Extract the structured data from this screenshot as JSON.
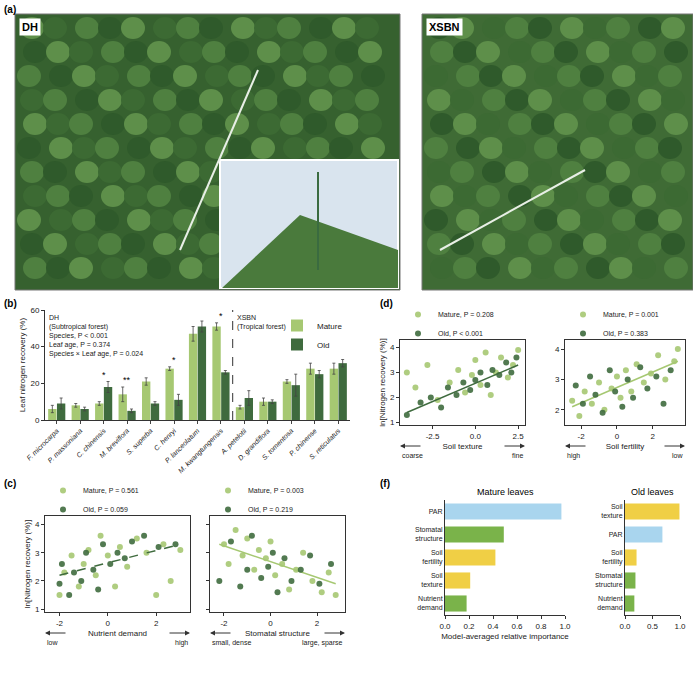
{
  "chart_data": [
    {
      "type": "photo",
      "panel": "(a)",
      "labels": [
        "DH",
        "XSBN"
      ]
    },
    {
      "type": "bar",
      "panel": "(b)",
      "y_label": "Leaf nitrogen recovery (%)",
      "categories": [
        "F. microcarpa",
        "P. massoniana",
        "C. chinensis",
        "M. breviflora",
        "S. superba",
        "C. henryi",
        "P. lanceolatum",
        "M. kwangtungensis",
        "A. petelotii",
        "D. grandiflora",
        "S. tomentosa",
        "P. chinense",
        "S. reticulatus"
      ],
      "series": [
        {
          "name": "Mature",
          "color": "#a6c872",
          "values": [
            6,
            8,
            9,
            14,
            21,
            28,
            47,
            51,
            7,
            10,
            21,
            28,
            28
          ],
          "errors": [
            2,
            1,
            1,
            4,
            2,
            1,
            4,
            2,
            1,
            2,
            1,
            3,
            3
          ]
        },
        {
          "name": "Old",
          "color": "#3f6b3e",
          "values": [
            9,
            6,
            18,
            5,
            9,
            11,
            51,
            26,
            12,
            10,
            19,
            25,
            31
          ],
          "errors": [
            3,
            1,
            3,
            1,
            1,
            3,
            3,
            1,
            4,
            1,
            6,
            2,
            2
          ]
        }
      ],
      "significance": [
        null,
        null,
        "*",
        "**",
        null,
        "*",
        null,
        "*",
        null,
        null,
        null,
        null,
        null
      ],
      "groups": [
        {
          "label": [
            "DH",
            "(Subtropical forest)"
          ],
          "stats": [
            "Species, P < 0.001",
            "Leaf age, P = 0.374",
            "Species × Leaf age, P = 0.024"
          ],
          "count": 8
        },
        {
          "label": [
            "XSBN",
            "(Tropical forest)"
          ],
          "count": 5
        }
      ],
      "ylim": [
        0,
        60
      ],
      "yticks": [
        0,
        20,
        40,
        60
      ],
      "grid": false,
      "legend": "top right"
    },
    {
      "type": "scatter",
      "panel": "(c)",
      "x_label": "Nutrient demand",
      "y_label": "ln[Nitrogen recovery (%)]",
      "x_arrows": [
        "low",
        "high"
      ],
      "xlim": [
        -2.6,
        3.4
      ],
      "xticks": [
        -2,
        0,
        2
      ],
      "ylim": [
        0.9,
        4.3
      ],
      "yticks": [
        1,
        2,
        3,
        4
      ],
      "grid": false,
      "legend": "top left",
      "series": [
        {
          "name": "Mature, P = 0.561",
          "color": "#a6c872",
          "marker": "circle",
          "x": [
            -2,
            -1.8,
            -1.5,
            -1.2,
            -1,
            -0.8,
            -0.5,
            -0.3,
            0,
            0.3,
            0.5,
            0.8,
            1.2,
            1.6,
            2,
            2.3,
            2.6,
            3
          ],
          "values": [
            1.5,
            2.3,
            2.9,
            1.8,
            2.6,
            3.1,
            2.2,
            3.6,
            2.9,
            1.8,
            3.2,
            2.5,
            3.5,
            3.0,
            1.5,
            3.3,
            2.0,
            3.1
          ]
        },
        {
          "name": "Old, P = 0.059",
          "color": "#3f6b3e",
          "marker": "circle",
          "x": [
            -2,
            -1.9,
            -1.6,
            -1.4,
            -1.1,
            -0.9,
            -0.6,
            -0.4,
            -0.2,
            0.1,
            0.4,
            0.7,
            1.0,
            1.5,
            2.1,
            2.8
          ],
          "values": [
            1.9,
            2.6,
            1.5,
            2.3,
            2.0,
            3.0,
            2.4,
            1.7,
            3.3,
            2.6,
            3.0,
            2.8,
            3.4,
            3.6,
            3.2,
            3.3
          ],
          "fit": {
            "x": [
              -2,
              3
            ],
            "values": [
              2.2,
              3.3
            ],
            "line_style": "dashed"
          }
        }
      ]
    },
    {
      "type": "scatter",
      "x_label": "Stomatal structure",
      "x_arrows": [
        "small, dense",
        "large, sparse"
      ],
      "tick_labels": "x",
      "xlim": [
        -2.6,
        3.2
      ],
      "xticks": [
        -2,
        0,
        2
      ],
      "ylim": [
        0.9,
        4.3
      ],
      "yticks": [
        1,
        2,
        3,
        4
      ],
      "grid": false,
      "legend": "top left",
      "series": [
        {
          "name": "Mature, P = 0.003",
          "color": "#a6c872",
          "marker": "circle",
          "x": [
            -2,
            -1.8,
            -1.5,
            -1.2,
            -1,
            -0.7,
            -0.5,
            -0.2,
            0,
            0.2,
            0.5,
            0.8,
            1.1,
            1.4,
            1.8,
            2.2,
            2.5,
            2.8
          ],
          "values": [
            3.3,
            2.6,
            3.8,
            2.9,
            3.5,
            2.4,
            3.1,
            2.8,
            3.4,
            2.2,
            2.6,
            1.7,
            2.4,
            3.0,
            2.0,
            1.6,
            2.3,
            1.5
          ],
          "fit": {
            "x": [
              -2.2,
              2.8
            ],
            "values": [
              3.3,
              1.9
            ],
            "line_style": "solid"
          }
        },
        {
          "name": "Old, P = 0.219",
          "color": "#3f6b3e",
          "marker": "circle",
          "x": [
            -2.2,
            -1.7,
            -1.3,
            -1,
            -0.8,
            -0.4,
            -0.1,
            0.1,
            0.3,
            0.6,
            0.9,
            1.3,
            1.7,
            2.1,
            2.6
          ],
          "values": [
            2.0,
            3.4,
            1.8,
            2.4,
            3.6,
            2.1,
            2.5,
            3.0,
            1.6,
            2.8,
            2.0,
            2.4,
            2.9,
            1.9,
            2.6
          ]
        }
      ]
    },
    {
      "type": "scatter",
      "panel": "(d)",
      "x_label": "Soil texture",
      "y_label": "ln[Nitrogen recovery (%)]",
      "x_arrows": [
        "coarse",
        "fine"
      ],
      "xlim": [
        -4.4,
        2.9
      ],
      "xticks": [
        -2.5,
        {
          "value": 0,
          "label": "0.0"
        },
        2.5
      ],
      "ylim": [
        0.9,
        4.3
      ],
      "yticks": [
        1,
        2,
        3,
        4
      ],
      "grid": false,
      "legend": "top left",
      "series": [
        {
          "name": "Mature, P = 0.208",
          "color": "#a6c872",
          "marker": "circle",
          "x": [
            -4,
            -3.5,
            -2.8,
            -2.2,
            -1.5,
            -1,
            -0.6,
            -0.2,
            0,
            0.3,
            0.6,
            0.9,
            1.2,
            1.5,
            1.9,
            2.2,
            2.5
          ],
          "values": [
            3.0,
            2.4,
            3.3,
            1.9,
            2.6,
            3.1,
            2.2,
            2.9,
            3.5,
            2.5,
            3.8,
            2.1,
            3.0,
            3.6,
            2.8,
            3.3,
            3.9
          ]
        },
        {
          "name": "Old, P < 0.001",
          "color": "#3f6b3e",
          "marker": "circle",
          "x": [
            -4,
            -3.2,
            -2.6,
            -2,
            -1.6,
            -1.1,
            -0.7,
            -0.3,
            0,
            0.3,
            0.7,
            1.0,
            1.4,
            1.8,
            2.1,
            2.4
          ],
          "values": [
            1.3,
            1.8,
            2.0,
            1.6,
            2.4,
            2.1,
            2.6,
            2.3,
            2.7,
            3.0,
            2.5,
            3.1,
            2.9,
            3.4,
            3.0,
            3.6
          ],
          "fit": {
            "x": [
              -4,
              2.5
            ],
            "values": [
              1.4,
              3.3
            ],
            "line_style": "solid"
          }
        }
      ]
    },
    {
      "type": "scatter",
      "x_label": "Soil fertility",
      "x_arrows": [
        "high",
        "low"
      ],
      "xlim": [
        -2.9,
        3.8
      ],
      "xticks": [
        -2,
        0,
        2
      ],
      "ylim": [
        1.5,
        4.3
      ],
      "yticks": [
        2,
        3,
        4
      ],
      "grid": false,
      "legend": "top left",
      "series": [
        {
          "name": "Mature, P = 0.001",
          "color": "#a6c872",
          "marker": "circle",
          "x": [
            -2.5,
            -2.1,
            -1.8,
            -1.4,
            -1,
            -0.7,
            -0.3,
            0,
            0.2,
            0.5,
            0.8,
            1.1,
            1.5,
            1.9,
            2.3,
            2.7,
            3.2,
            3.4
          ],
          "values": [
            2.3,
            1.8,
            2.6,
            2.2,
            2.9,
            2.0,
            2.7,
            3.1,
            2.4,
            3.3,
            2.6,
            3.5,
            2.9,
            3.2,
            3.8,
            3.0,
            3.6,
            4.0
          ],
          "fit": {
            "x": [
              -2.5,
              3.4
            ],
            "values": [
              2.1,
              3.6
            ],
            "line_style": "solid"
          }
        },
        {
          "name": "Old, P = 0.383",
          "color": "#3f6b3e",
          "marker": "circle",
          "x": [
            -2.3,
            -1.9,
            -1.5,
            -1.2,
            -0.8,
            -0.4,
            -0.1,
            0.3,
            0.6,
            0.9,
            1.3,
            1.7,
            2.2,
            2.6,
            3.0
          ],
          "values": [
            2.8,
            2.2,
            3.1,
            2.5,
            1.9,
            3.3,
            2.6,
            2.1,
            3.0,
            2.4,
            3.4,
            2.7,
            3.1,
            2.2,
            3.3
          ]
        }
      ]
    },
    {
      "type": "bar",
      "orientation": "horizontal",
      "panel": "(f)",
      "title": "Mature leaves",
      "x_label": "Model-averaged relative importance",
      "categories": [
        "PAR",
        "Stomatal structure",
        "Soil fertility",
        "Soil texture",
        "Nutrient demand"
      ],
      "values": [
        0.97,
        0.49,
        0.42,
        0.21,
        0.18
      ],
      "colors": [
        "#a9d5ee",
        "#7ab34a",
        "#f0cf45",
        "#f0cf45",
        "#7ab34a"
      ],
      "xlim": [
        0,
        1
      ],
      "xticks": [
        {
          "value": 0,
          "label": "0.0"
        },
        0.2,
        0.4,
        0.6,
        0.8,
        {
          "value": 1,
          "label": "1.0"
        }
      ],
      "grid": false
    },
    {
      "type": "bar",
      "orientation": "horizontal",
      "title": "Old leaves",
      "categories": [
        "Soil texture",
        "PAR",
        "Soil fertility",
        "Stomatal structure",
        "Nutrient demand"
      ],
      "values": [
        0.99,
        0.68,
        0.21,
        0.19,
        0.17
      ],
      "colors": [
        "#f0cf45",
        "#a9d5ee",
        "#f0cf45",
        "#7ab34a",
        "#7ab34a"
      ],
      "xlim": [
        0,
        1
      ],
      "xticks": [
        {
          "value": 0,
          "label": "0.0"
        },
        0.5,
        {
          "value": 1,
          "label": "1.0"
        }
      ],
      "grid": false
    }
  ]
}
